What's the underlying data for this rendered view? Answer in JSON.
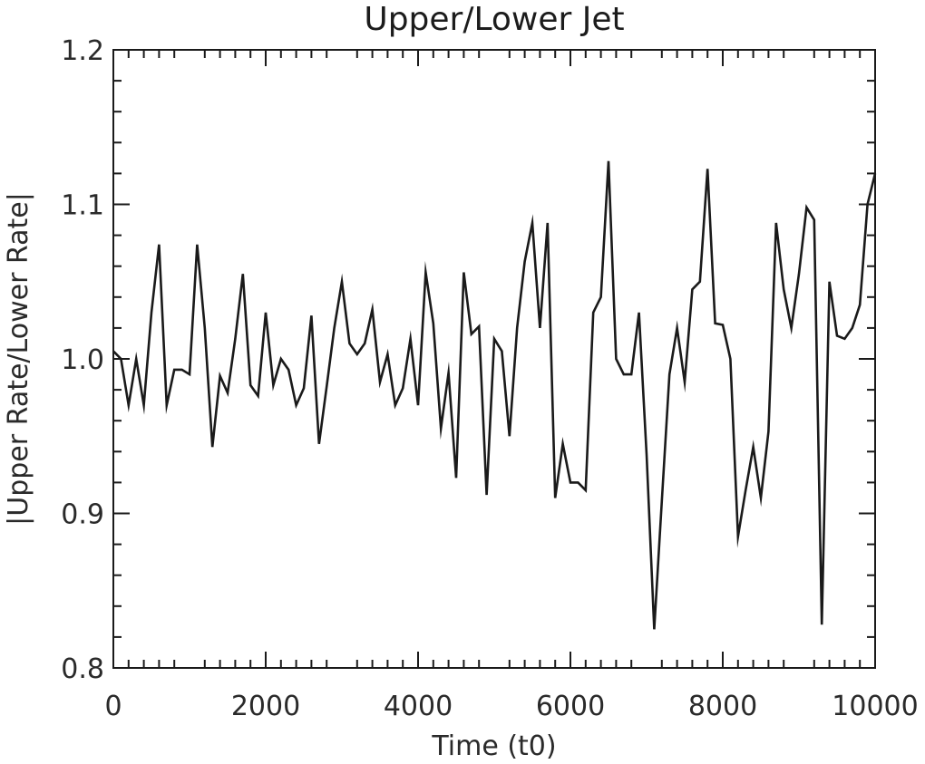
{
  "chart_data": {
    "type": "line",
    "title": "Upper/Lower Jet",
    "xlabel": "Time (t0)",
    "ylabel": "|Upper Rate/Lower Rate|",
    "xlim": [
      0,
      10000
    ],
    "ylim": [
      0.8,
      1.2
    ],
    "x_ticks": [
      0,
      2000,
      4000,
      6000,
      8000,
      10000
    ],
    "x_tick_labels": [
      "0",
      "2000",
      "4000",
      "6000",
      "8000",
      "10000"
    ],
    "y_ticks": [
      0.8,
      0.9,
      1.0,
      1.1,
      1.2
    ],
    "y_tick_labels": [
      "0.8",
      "0.9",
      "1.0",
      "1.1",
      "1.2"
    ],
    "grid": false,
    "line_color": "#1a1a1a",
    "series": [
      {
        "x": [
          0,
          100,
          200,
          300,
          400,
          500,
          600,
          700,
          800,
          900,
          1000,
          1100,
          1200,
          1300,
          1400,
          1500,
          1600,
          1700,
          1800,
          1900,
          2000,
          2100,
          2200,
          2300,
          2400,
          2500,
          2600,
          2700,
          2800,
          2900,
          3000,
          3100,
          3200,
          3300,
          3400,
          3500,
          3600,
          3700,
          3800,
          3900,
          4000,
          4100,
          4200,
          4300,
          4400,
          4500,
          4600,
          4700,
          4800,
          4900,
          5000,
          5100,
          5200,
          5300,
          5400,
          5500,
          5600,
          5700,
          5800,
          5900,
          6000,
          6100,
          6200,
          6300,
          6400,
          6500,
          6600,
          6700,
          6800,
          6900,
          7000,
          7100,
          7200,
          7300,
          7400,
          7500,
          7600,
          7700,
          7800,
          7900,
          8000,
          8100,
          8200,
          8300,
          8400,
          8500,
          8600,
          8700,
          8800,
          8900,
          9000,
          9100,
          9200,
          9300,
          9400,
          9500,
          9600,
          9700,
          9800,
          9900,
          10000
        ],
        "values": [
          1.005,
          1.0,
          0.97,
          1.0,
          0.97,
          1.03,
          1.074,
          0.97,
          0.993,
          0.993,
          0.99,
          1.074,
          1.02,
          0.943,
          0.989,
          0.978,
          1.013,
          1.055,
          0.983,
          0.976,
          1.03,
          0.983,
          1.0,
          0.993,
          0.97,
          0.981,
          1.028,
          0.945,
          0.982,
          1.02,
          1.05,
          1.01,
          1.003,
          1.01,
          1.032,
          0.985,
          1.003,
          0.97,
          0.981,
          1.013,
          0.97,
          1.056,
          1.023,
          0.955,
          0.991,
          0.923,
          1.056,
          1.016,
          1.021,
          0.912,
          1.013,
          1.005,
          0.95,
          1.02,
          1.063,
          1.088,
          1.02,
          1.088,
          0.91,
          0.945,
          0.92,
          0.92,
          0.915,
          1.03,
          1.04,
          1.128,
          1.0,
          0.99,
          0.99,
          1.03,
          0.938,
          0.825,
          0.908,
          0.99,
          1.02,
          0.985,
          1.045,
          1.05,
          1.123,
          1.023,
          1.022,
          1.0,
          0.885,
          0.915,
          0.943,
          0.91,
          0.953,
          1.088,
          1.045,
          1.02,
          1.055,
          1.098,
          1.09,
          0.828,
          1.05,
          1.015,
          1.013,
          1.02,
          1.035,
          1.1,
          1.12
        ]
      }
    ]
  }
}
